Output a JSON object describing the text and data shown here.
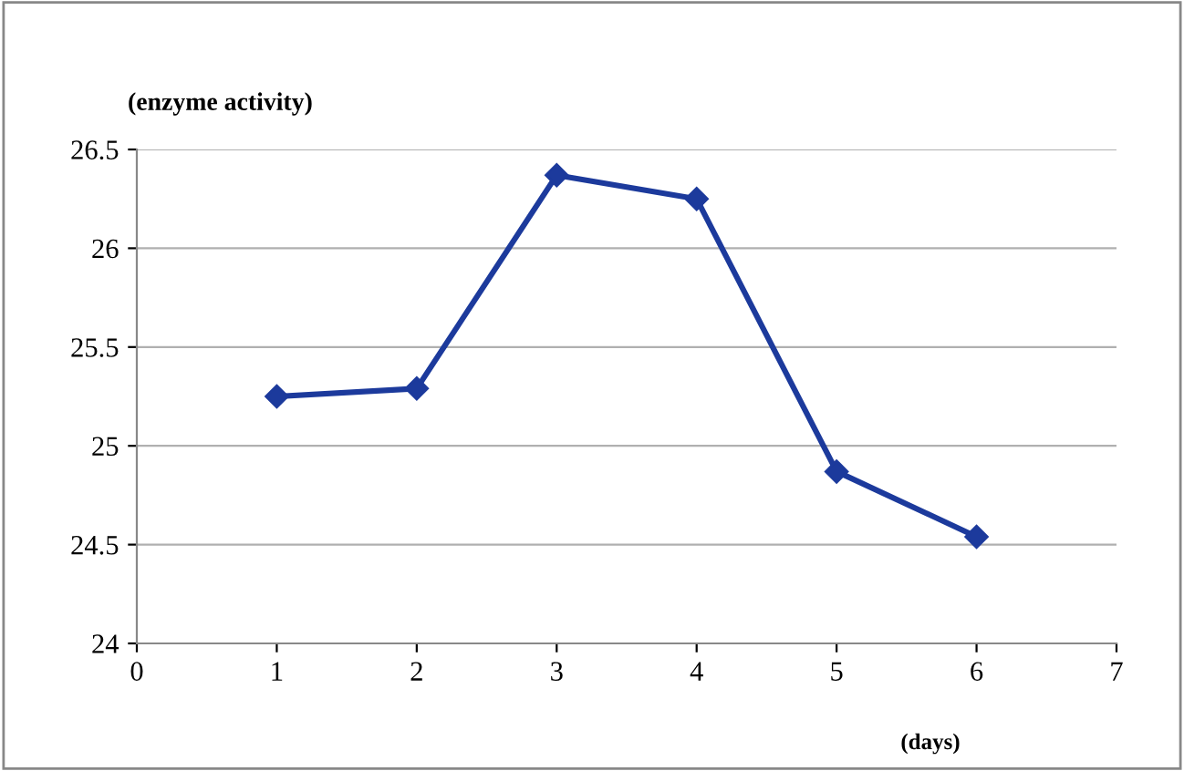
{
  "chart_data": {
    "type": "line",
    "ylabel": "(enzyme activity)",
    "xlabel": "(days)",
    "x": [
      1,
      2,
      3,
      4,
      5,
      6
    ],
    "series": [
      {
        "color": "#1c3a9c",
        "values": [
          25.25,
          25.29,
          26.37,
          26.25,
          24.87,
          24.54
        ]
      }
    ],
    "xlim": [
      0,
      7
    ],
    "xticks": [
      0,
      1,
      2,
      3,
      4,
      5,
      6,
      7
    ],
    "ylim": [
      24,
      26.5
    ],
    "yticks": [
      24,
      24.5,
      25,
      25.5,
      26,
      26.5
    ],
    "grid": "y",
    "marker": "diamond",
    "line_style": "solid"
  }
}
